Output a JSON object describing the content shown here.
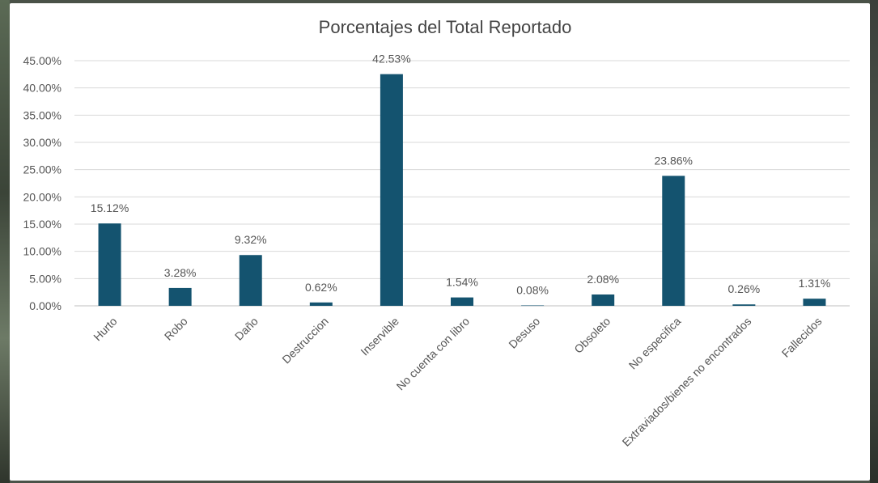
{
  "chart_data": {
    "type": "bar",
    "title": "Porcentajes del Total Reportado",
    "categories": [
      "Hurto",
      "Robo",
      "Daño",
      "Destruccion",
      "Inservible",
      "No cuenta con libro",
      "Desuso",
      "Obsoleto",
      "No especifica",
      "Extraviados/bienes no encontrados",
      "Fallecidos"
    ],
    "values": [
      15.12,
      3.28,
      9.32,
      0.62,
      42.53,
      1.54,
      0.08,
      2.08,
      23.86,
      0.26,
      1.31
    ],
    "data_labels": [
      "15.12%",
      "3.28%",
      "9.32%",
      "0.62%",
      "42.53%",
      "1.54%",
      "0.08%",
      "2.08%",
      "23.86%",
      "0.26%",
      "1.31%"
    ],
    "ylim": [
      0,
      45
    ],
    "yticks": [
      0,
      5,
      10,
      15,
      20,
      25,
      30,
      35,
      40,
      45
    ],
    "ytick_labels": [
      "0.00%",
      "5.00%",
      "10.00%",
      "15.00%",
      "20.00%",
      "25.00%",
      "30.00%",
      "35.00%",
      "40.00%",
      "45.00%"
    ],
    "xlabel": "",
    "ylabel": "",
    "grid": true,
    "legend": "none",
    "bar_color": "#14536f",
    "grid_color": "#d9d9d9"
  }
}
